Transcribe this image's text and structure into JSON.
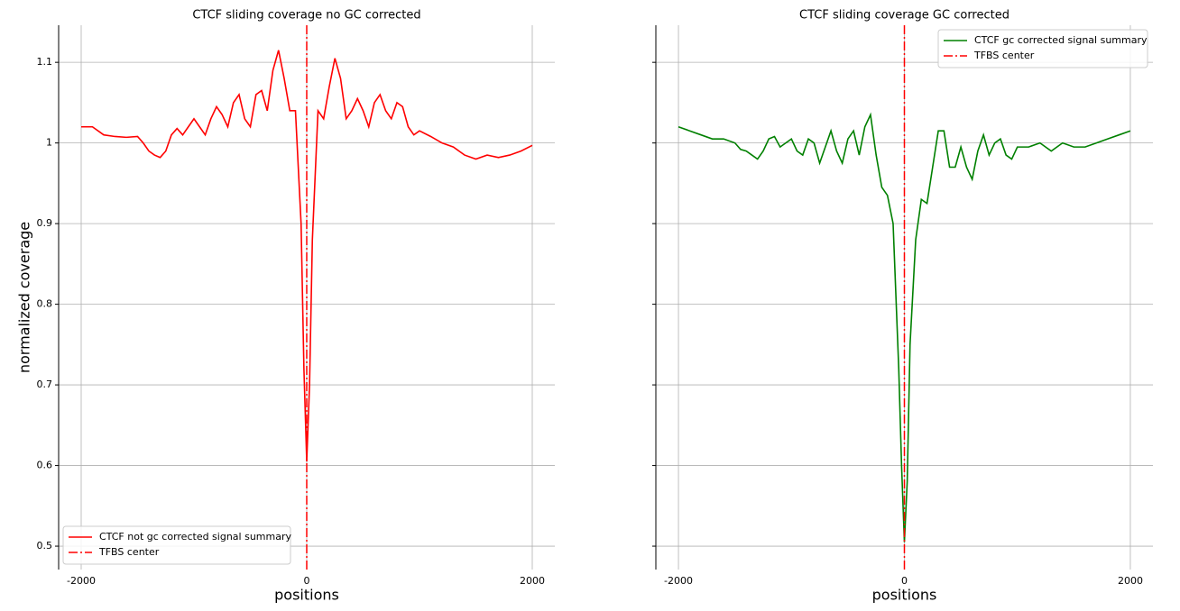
{
  "chart_data": [
    {
      "type": "line",
      "title": "CTCF sliding coverage no GC corrected",
      "xlabel": "positions",
      "ylabel": "normalized coverage",
      "x": [
        -2000,
        -1900,
        -1800,
        -1700,
        -1600,
        -1500,
        -1450,
        -1400,
        -1350,
        -1300,
        -1250,
        -1200,
        -1150,
        -1100,
        -1050,
        -1000,
        -950,
        -900,
        -850,
        -800,
        -750,
        -700,
        -650,
        -600,
        -550,
        -500,
        -450,
        -400,
        -350,
        -300,
        -250,
        -200,
        -150,
        -100,
        -50,
        -25,
        0,
        25,
        50,
        100,
        150,
        200,
        250,
        300,
        350,
        400,
        450,
        500,
        550,
        600,
        650,
        700,
        750,
        800,
        850,
        900,
        950,
        1000,
        1100,
        1200,
        1300,
        1400,
        1500,
        1600,
        1700,
        1800,
        1900,
        2000
      ],
      "series": [
        {
          "name": "CTCF not gc corrected signal summary",
          "color": "#ff0000",
          "values": [
            1.02,
            1.02,
            1.01,
            1.008,
            1.007,
            1.008,
            1.0,
            0.99,
            0.985,
            0.982,
            0.99,
            1.01,
            1.018,
            1.01,
            1.02,
            1.03,
            1.02,
            1.01,
            1.03,
            1.045,
            1.035,
            1.02,
            1.05,
            1.06,
            1.03,
            1.02,
            1.06,
            1.065,
            1.04,
            1.09,
            1.115,
            1.08,
            1.04,
            1.04,
            0.9,
            0.72,
            0.605,
            0.7,
            0.88,
            1.04,
            1.03,
            1.07,
            1.105,
            1.08,
            1.03,
            1.04,
            1.055,
            1.04,
            1.02,
            1.05,
            1.06,
            1.04,
            1.03,
            1.05,
            1.045,
            1.02,
            1.01,
            1.015,
            1.008,
            1.0,
            0.995,
            0.985,
            0.98,
            0.985,
            0.982,
            0.985,
            0.99,
            0.997
          ]
        }
      ],
      "vlines": [
        {
          "name": "TFBS center",
          "x": 0,
          "color": "#ff0000",
          "style": "dashdot"
        }
      ],
      "xlim": [
        -2200,
        2200
      ],
      "ylim": [
        0.471,
        1.146
      ],
      "xticks": [
        -2000,
        0,
        2000
      ],
      "yticks": [
        0.5,
        0.6,
        0.7,
        0.8,
        0.9,
        1.0,
        1.1
      ],
      "grid": true,
      "legend": "lower left"
    },
    {
      "type": "line",
      "title": "CTCF sliding coverage GC corrected",
      "xlabel": "positions",
      "x": [
        -2000,
        -1900,
        -1800,
        -1700,
        -1600,
        -1500,
        -1450,
        -1400,
        -1350,
        -1300,
        -1250,
        -1200,
        -1150,
        -1100,
        -1050,
        -1000,
        -950,
        -900,
        -850,
        -800,
        -750,
        -700,
        -650,
        -600,
        -550,
        -500,
        -450,
        -400,
        -350,
        -300,
        -250,
        -200,
        -150,
        -100,
        -50,
        -25,
        0,
        25,
        50,
        100,
        150,
        200,
        250,
        300,
        350,
        400,
        450,
        500,
        550,
        600,
        650,
        700,
        750,
        800,
        850,
        900,
        950,
        1000,
        1100,
        1200,
        1300,
        1400,
        1500,
        1600,
        1700,
        1800,
        1900,
        2000
      ],
      "series": [
        {
          "name": "CTCF gc corrected signal summary",
          "color": "#008000",
          "values": [
            1.02,
            1.015,
            1.01,
            1.005,
            1.005,
            1.0,
            0.992,
            0.99,
            0.985,
            0.98,
            0.99,
            1.005,
            1.008,
            0.995,
            1.0,
            1.005,
            0.99,
            0.985,
            1.005,
            1.0,
            0.975,
            0.995,
            1.015,
            0.99,
            0.975,
            1.005,
            1.015,
            0.985,
            1.02,
            1.035,
            0.985,
            0.945,
            0.935,
            0.9,
            0.72,
            0.6,
            0.505,
            0.58,
            0.75,
            0.88,
            0.93,
            0.925,
            0.97,
            1.015,
            1.015,
            0.97,
            0.97,
            0.995,
            0.97,
            0.955,
            0.99,
            1.01,
            0.985,
            1.0,
            1.005,
            0.985,
            0.98,
            0.995,
            0.995,
            1.0,
            0.99,
            1.0,
            0.995,
            0.995,
            1.0,
            1.005,
            1.01,
            1.015
          ]
        }
      ],
      "vlines": [
        {
          "name": "TFBS center",
          "x": 0,
          "color": "#ff0000",
          "style": "dashdot"
        }
      ],
      "xlim": [
        -2200,
        2200
      ],
      "ylim": [
        0.471,
        1.146
      ],
      "xticks": [
        -2000,
        0,
        2000
      ],
      "yticks": [
        0.5,
        0.6,
        0.7,
        0.8,
        0.9,
        1.0,
        1.1
      ],
      "yticklabels": false,
      "grid": true,
      "legend": "upper right"
    }
  ]
}
